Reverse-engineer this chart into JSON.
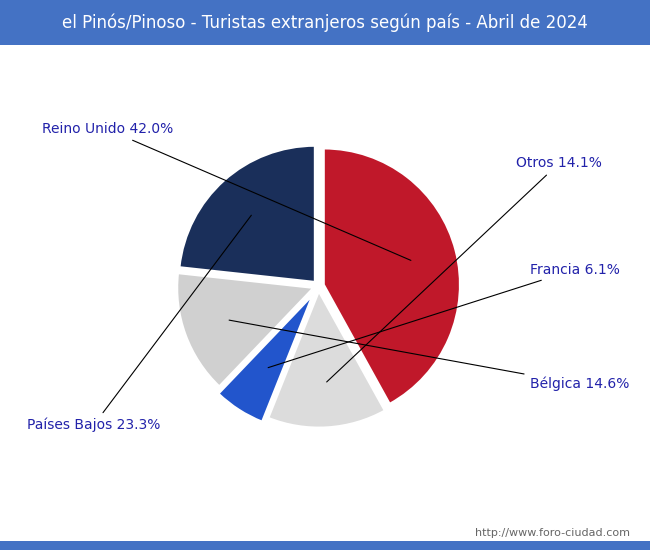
{
  "title": "el Pinós/Pinoso - Turistas extranjeros según país - Abril de 2024",
  "title_bg_color": "#4472C4",
  "title_text_color": "white",
  "title_fontsize": 12,
  "labels": [
    "Reino Unido",
    "Otros",
    "Francia",
    "Bélgica",
    "Países Bajos"
  ],
  "values": [
    42.0,
    14.1,
    6.1,
    14.6,
    23.3
  ],
  "colors": [
    "#C0182A",
    "#DCDCDC",
    "#2255CC",
    "#D0D0D0",
    "#1A2F5A"
  ],
  "explode": [
    0.04,
    0.04,
    0.08,
    0.04,
    0.04
  ],
  "label_color": "#2222AA",
  "label_fontsize": 10,
  "watermark": "http://www.foro-ciudad.com",
  "watermark_fontsize": 8,
  "watermark_color": "#666666",
  "startangle": 90,
  "counterclock": false
}
